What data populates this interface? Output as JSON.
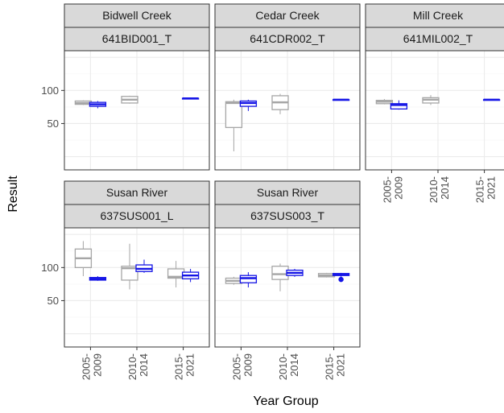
{
  "chart_data": {
    "type": "boxplot",
    "xlabel": "Year Group",
    "ylabel": "Result",
    "ylim": [
      -20,
      160
    ],
    "y_ticks": [
      50,
      100
    ],
    "grid": true,
    "x_categories": [
      "2005-\n2009",
      "2010-\n2014",
      "2015-\n2021"
    ],
    "colors": {
      "group_a": "#a6a6a6",
      "group_b": "#1414e6",
      "strip_fill": "#d9d9d9",
      "strip_border": "#333333",
      "grid_major": "#ebebeb"
    },
    "panels": [
      {
        "strip1": "Bidwell Creek",
        "strip2": "641BID001_T",
        "boxes": [
          {
            "cat": 0,
            "group": "group_a",
            "min": 78,
            "q1": 79,
            "median": 81,
            "q3": 84,
            "max": 85,
            "outliers": []
          },
          {
            "cat": 0,
            "group": "group_b",
            "min": 73,
            "q1": 76,
            "median": 79,
            "q3": 82,
            "max": 84,
            "outliers": []
          },
          {
            "cat": 1,
            "group": "group_a",
            "min": 80,
            "q1": 81,
            "median": 86,
            "q3": 91,
            "max": 92,
            "outliers": []
          },
          {
            "cat": 2,
            "group": "group_b",
            "min": 88,
            "q1": 88,
            "median": 88,
            "q3": 88,
            "max": 88,
            "outliers": []
          }
        ]
      },
      {
        "strip1": "Cedar Creek",
        "strip2": "641CDR002_T",
        "boxes": [
          {
            "cat": 0,
            "group": "group_a",
            "min": 8,
            "q1": 44,
            "median": 81,
            "q3": 83,
            "max": 86,
            "outliers": []
          },
          {
            "cat": 0,
            "group": "group_b",
            "min": 69,
            "q1": 76,
            "median": 81,
            "q3": 84,
            "max": 86,
            "outliers": []
          },
          {
            "cat": 1,
            "group": "group_a",
            "min": 64,
            "q1": 71,
            "median": 82,
            "q3": 92,
            "max": 95,
            "outliers": []
          },
          {
            "cat": 2,
            "group": "group_b",
            "min": 86,
            "q1": 86,
            "median": 86,
            "q3": 86,
            "max": 86,
            "outliers": []
          }
        ]
      },
      {
        "strip1": "Mill Creek",
        "strip2": "641MIL002_T",
        "boxes": [
          {
            "cat": 0,
            "group": "group_a",
            "min": 79,
            "q1": 80,
            "median": 83,
            "q3": 85,
            "max": 87,
            "outliers": []
          },
          {
            "cat": 0,
            "group": "group_b",
            "min": 71,
            "q1": 72,
            "median": 78,
            "q3": 80,
            "max": 85,
            "outliers": []
          },
          {
            "cat": 1,
            "group": "group_a",
            "min": 78,
            "q1": 81,
            "median": 86,
            "q3": 89,
            "max": 93,
            "outliers": []
          },
          {
            "cat": 2,
            "group": "group_b",
            "min": 86,
            "q1": 86,
            "median": 86,
            "q3": 86,
            "max": 86,
            "outliers": []
          }
        ]
      },
      {
        "strip1": "Susan River",
        "strip2": "637SUS001_L",
        "boxes": [
          {
            "cat": 0,
            "group": "group_a",
            "min": 87,
            "q1": 100,
            "median": 114,
            "q3": 128,
            "max": 140,
            "outliers": []
          },
          {
            "cat": 0,
            "group": "group_b",
            "min": 80,
            "q1": 81,
            "median": 83,
            "q3": 85,
            "max": 87,
            "outliers": []
          },
          {
            "cat": 1,
            "group": "group_a",
            "min": 67,
            "q1": 81,
            "median": 99,
            "q3": 102,
            "max": 136,
            "outliers": []
          },
          {
            "cat": 1,
            "group": "group_b",
            "min": 92,
            "q1": 94,
            "median": 98,
            "q3": 104,
            "max": 112,
            "outliers": []
          },
          {
            "cat": 2,
            "group": "group_a",
            "min": 70,
            "q1": 84,
            "median": 86,
            "q3": 98,
            "max": 110,
            "outliers": []
          },
          {
            "cat": 2,
            "group": "group_b",
            "min": 78,
            "q1": 83,
            "median": 88,
            "q3": 93,
            "max": 98,
            "outliers": []
          }
        ]
      },
      {
        "strip1": "Susan River",
        "strip2": "637SUS003_T",
        "boxes": [
          {
            "cat": 0,
            "group": "group_a",
            "min": 74,
            "q1": 76,
            "median": 80,
            "q3": 84,
            "max": 86,
            "outliers": []
          },
          {
            "cat": 0,
            "group": "group_b",
            "min": 70,
            "q1": 77,
            "median": 84,
            "q3": 88,
            "max": 93,
            "outliers": []
          },
          {
            "cat": 1,
            "group": "group_a",
            "min": 64,
            "q1": 82,
            "median": 90,
            "q3": 102,
            "max": 106,
            "outliers": []
          },
          {
            "cat": 1,
            "group": "group_b",
            "min": 86,
            "q1": 88,
            "median": 92,
            "q3": 96,
            "max": 98,
            "outliers": []
          },
          {
            "cat": 2,
            "group": "group_a",
            "min": 85,
            "q1": 86,
            "median": 88,
            "q3": 91,
            "max": 92,
            "outliers": []
          },
          {
            "cat": 2,
            "group": "group_b",
            "min": 86,
            "q1": 88,
            "median": 89,
            "q3": 91,
            "max": 92,
            "outliers": [
              82
            ]
          }
        ]
      }
    ]
  }
}
